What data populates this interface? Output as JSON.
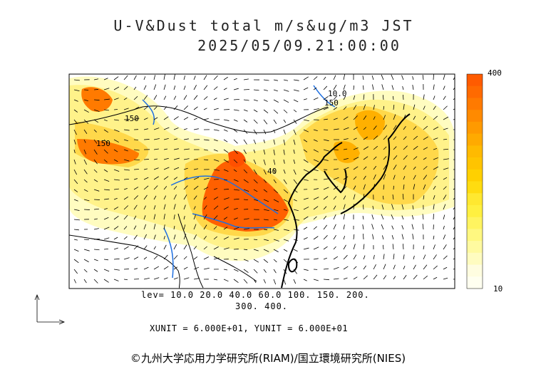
{
  "header": {
    "title_line1": "U-V&Dust total m/s&ug/m3 JST",
    "title_line2": "2025/05/09.21:00:00"
  },
  "colorbar": {
    "max_label": "400",
    "min_label": "10",
    "colors": [
      "#ff5b00",
      "#ff6a00",
      "#ff7a00",
      "#ff8a00",
      "#ff9a00",
      "#ffaa00",
      "#ffba00",
      "#ffc400",
      "#ffd000",
      "#ffdc10",
      "#ffe830",
      "#fff040",
      "#fff460",
      "#fff880",
      "#fffaa0",
      "#fffcc0",
      "#fffde0",
      "#fffff0"
    ]
  },
  "contour_levels": {
    "line1": "lev= 10.0 20.0 40.0 60.0 100. 150. 200.",
    "line2": "300. 400."
  },
  "map_labels": {
    "label_150a": "150",
    "label_150b": "150",
    "label_100": "10.0",
    "label_40": "40",
    "label_150c": "150"
  },
  "units": "XUNIT = 6.000E+01, YUNIT = 6.000E+01",
  "credit": "©九州大学応用力学研究所(RIAM)/国立環境研究所(NIES)",
  "colors": {
    "coast": "#000000",
    "river": "#1e6fe0",
    "frame": "#000000"
  }
}
